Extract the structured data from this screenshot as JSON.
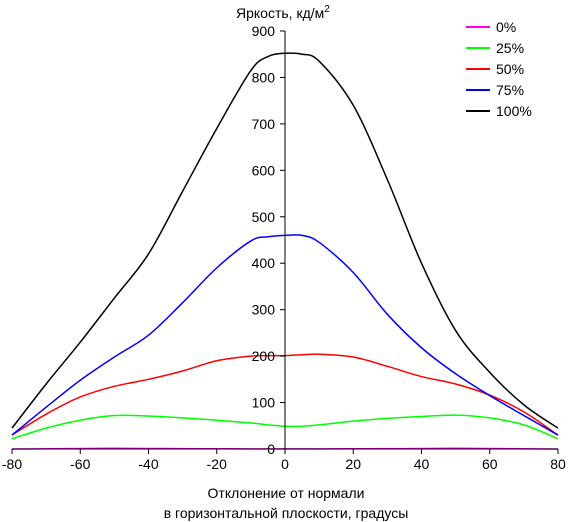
{
  "chart_data": {
    "type": "line",
    "title": "Яркость, кд/м",
    "title_superscript": "2",
    "xlabel_line1": "Отклонение от нормали",
    "xlabel_line2": "в горизонтальной плоскости, градусы",
    "xlim": [
      -80,
      80
    ],
    "ylim": [
      0,
      900
    ],
    "xticks": [
      -80,
      -60,
      -40,
      -20,
      0,
      20,
      40,
      60,
      80
    ],
    "yticks": [
      0,
      100,
      200,
      300,
      400,
      500,
      600,
      700,
      800,
      900
    ],
    "grid": false,
    "legend_position": "top-right",
    "x": [
      -80,
      -70,
      -60,
      -50,
      -40,
      -30,
      -20,
      -10,
      -5,
      0,
      5,
      10,
      20,
      30,
      40,
      50,
      60,
      70,
      80
    ],
    "series": [
      {
        "name": "0%",
        "color": "#ff00ff",
        "values": [
          0,
          0.5,
          1,
          1.5,
          1.2,
          0.8,
          0.5,
          0.3,
          0.2,
          0.2,
          0.2,
          0.3,
          0.5,
          0.8,
          1,
          1.5,
          1.2,
          0.5,
          0
        ]
      },
      {
        "name": "25%",
        "color": "#00ff00",
        "values": [
          22,
          45,
          62,
          72,
          71,
          67,
          62,
          56,
          52,
          49,
          49,
          52,
          60,
          66,
          70,
          73,
          67,
          52,
          22
        ]
      },
      {
        "name": "50%",
        "color": "#ff0000",
        "values": [
          30,
          75,
          112,
          135,
          150,
          168,
          190,
          200,
          201,
          201,
          203,
          204,
          198,
          178,
          156,
          140,
          116,
          80,
          30
        ]
      },
      {
        "name": "75%",
        "color": "#0000ff",
        "values": [
          30,
          90,
          148,
          198,
          245,
          315,
          390,
          448,
          457,
          460,
          460,
          445,
          380,
          290,
          218,
          162,
          115,
          72,
          30
        ]
      },
      {
        "name": "100%",
        "color": "#000000",
        "values": [
          45,
          140,
          230,
          325,
          420,
          555,
          690,
          815,
          845,
          852,
          850,
          835,
          740,
          580,
          400,
          255,
          165,
          95,
          45
        ]
      }
    ]
  }
}
